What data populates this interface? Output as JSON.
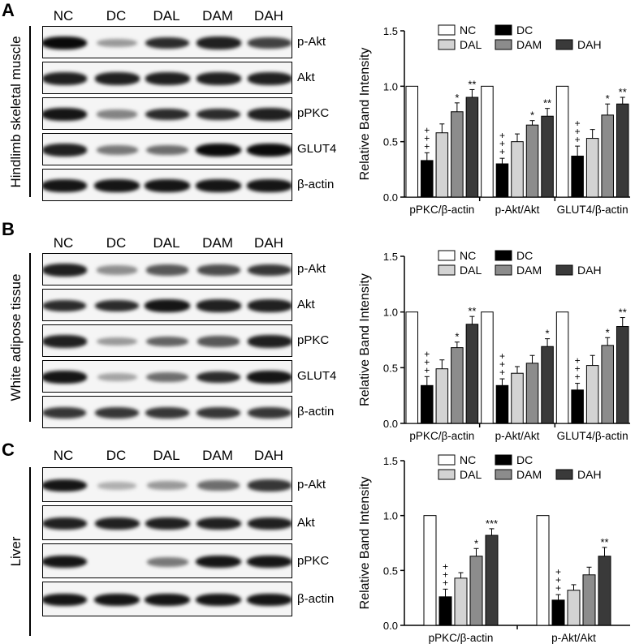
{
  "lanes": [
    "NC",
    "DC",
    "DAL",
    "DAM",
    "DAH"
  ],
  "legend_colors": [
    "#ffffff",
    "#000000",
    "#d3d3d3",
    "#8c8c8c",
    "#3a3a3a"
  ],
  "panels": [
    {
      "letter": "A",
      "tissue": "Hindlimb skeletal muscle",
      "blots": [
        {
          "label": "p-Akt",
          "intensity": [
            1.0,
            0.35,
            0.85,
            0.9,
            0.75
          ]
        },
        {
          "label": "Akt",
          "intensity": [
            0.9,
            0.9,
            0.9,
            0.9,
            0.9
          ]
        },
        {
          "label": "pPKC",
          "intensity": [
            0.95,
            0.45,
            0.85,
            0.85,
            0.9
          ]
        },
        {
          "label": "GLUT4",
          "intensity": [
            0.9,
            0.5,
            0.55,
            1.0,
            1.0
          ]
        },
        {
          "label": "β-actin",
          "intensity": [
            0.95,
            0.95,
            0.95,
            0.95,
            0.95
          ]
        }
      ]
    },
    {
      "letter": "B",
      "tissue": "White adipose tissue",
      "blots": [
        {
          "label": "p-Akt",
          "intensity": [
            0.9,
            0.4,
            0.65,
            0.7,
            0.8
          ]
        },
        {
          "label": "Akt",
          "intensity": [
            0.85,
            0.85,
            0.95,
            0.9,
            0.9
          ]
        },
        {
          "label": "pPKC",
          "intensity": [
            0.9,
            0.35,
            0.6,
            0.65,
            0.9
          ]
        },
        {
          "label": "GLUT4",
          "intensity": [
            0.95,
            0.3,
            0.55,
            0.85,
            0.95
          ]
        },
        {
          "label": "β-actin",
          "intensity": [
            0.8,
            0.8,
            0.8,
            0.8,
            0.8
          ]
        }
      ]
    },
    {
      "letter": "C",
      "tissue": "Liver",
      "blots": [
        {
          "label": "p-Akt",
          "intensity": [
            0.95,
            0.25,
            0.35,
            0.55,
            0.8
          ]
        },
        {
          "label": "Akt",
          "intensity": [
            0.9,
            0.9,
            0.9,
            0.9,
            0.9
          ]
        },
        {
          "label": "pPKC",
          "intensity": [
            0.95,
            0.0,
            0.5,
            0.95,
            0.95
          ]
        },
        {
          "label": "β-actin",
          "intensity": [
            0.95,
            0.95,
            0.95,
            0.95,
            0.95
          ]
        }
      ]
    }
  ],
  "chart_data": [
    {
      "type": "bar",
      "ylabel": "Relative Band Intensity",
      "ylim": [
        0,
        1.5
      ],
      "yticks": [
        "0.0",
        "0.5",
        "1.0",
        "1.5"
      ],
      "categories": [
        "pPKC/β-actin",
        "p-Akt/Akt",
        "GLUT4/β-actin"
      ],
      "legend": "top",
      "series": [
        {
          "name": "NC",
          "values": [
            1.0,
            1.0,
            1.0
          ],
          "errors": [
            0,
            0,
            0
          ],
          "marks": [
            "",
            "",
            ""
          ]
        },
        {
          "name": "DC",
          "values": [
            0.33,
            0.3,
            0.37
          ],
          "errors": [
            0.07,
            0.05,
            0.09
          ],
          "marks": [
            "+++",
            "+++",
            "+++"
          ]
        },
        {
          "name": "DAL",
          "values": [
            0.58,
            0.5,
            0.53
          ],
          "errors": [
            0.08,
            0.07,
            0.08
          ],
          "marks": [
            "",
            "",
            ""
          ]
        },
        {
          "name": "DAM",
          "values": [
            0.77,
            0.65,
            0.74
          ],
          "errors": [
            0.08,
            0.04,
            0.1
          ],
          "marks": [
            "*",
            "*",
            "*"
          ]
        },
        {
          "name": "DAH",
          "values": [
            0.9,
            0.73,
            0.84
          ],
          "errors": [
            0.07,
            0.07,
            0.06
          ],
          "marks": [
            "**",
            "**",
            "**"
          ]
        }
      ]
    },
    {
      "type": "bar",
      "ylabel": "Relative Band Intensity",
      "ylim": [
        0,
        1.5
      ],
      "yticks": [
        "0.0",
        "0.5",
        "1.0",
        "1.5"
      ],
      "categories": [
        "pPKC/β-actin",
        "p-Akt/Akt",
        "GLUT4/β-actin"
      ],
      "legend": "top",
      "series": [
        {
          "name": "NC",
          "values": [
            1.0,
            1.0,
            1.0
          ],
          "errors": [
            0,
            0,
            0
          ],
          "marks": [
            "",
            "",
            ""
          ]
        },
        {
          "name": "DC",
          "values": [
            0.34,
            0.34,
            0.3
          ],
          "errors": [
            0.08,
            0.06,
            0.06
          ],
          "marks": [
            "+++",
            "+++",
            "+++"
          ]
        },
        {
          "name": "DAL",
          "values": [
            0.49,
            0.45,
            0.52
          ],
          "errors": [
            0.08,
            0.06,
            0.09
          ],
          "marks": [
            "",
            "",
            ""
          ]
        },
        {
          "name": "DAM",
          "values": [
            0.68,
            0.54,
            0.7
          ],
          "errors": [
            0.05,
            0.07,
            0.07
          ],
          "marks": [
            "*",
            "",
            "*"
          ]
        },
        {
          "name": "DAH",
          "values": [
            0.89,
            0.69,
            0.87
          ],
          "errors": [
            0.07,
            0.07,
            0.08
          ],
          "marks": [
            "**",
            "*",
            "**"
          ]
        }
      ]
    },
    {
      "type": "bar",
      "ylabel": "Relative Band Intensity",
      "ylim": [
        0,
        1.5
      ],
      "yticks": [
        "0.0",
        "0.5",
        "1.0",
        "1.5"
      ],
      "categories": [
        "pPKC/β-actin",
        "p-Akt/Akt"
      ],
      "legend": "top",
      "series": [
        {
          "name": "NC",
          "values": [
            1.0,
            1.0
          ],
          "errors": [
            0,
            0
          ],
          "marks": [
            "",
            ""
          ]
        },
        {
          "name": "DC",
          "values": [
            0.26,
            0.23
          ],
          "errors": [
            0.07,
            0.05
          ],
          "marks": [
            "+++",
            "+++"
          ]
        },
        {
          "name": "DAL",
          "values": [
            0.43,
            0.32
          ],
          "errors": [
            0.05,
            0.05
          ],
          "marks": [
            "",
            ""
          ]
        },
        {
          "name": "DAM",
          "values": [
            0.63,
            0.46
          ],
          "errors": [
            0.07,
            0.07
          ],
          "marks": [
            "*",
            ""
          ]
        },
        {
          "name": "DAH",
          "values": [
            0.82,
            0.63
          ],
          "errors": [
            0.06,
            0.08
          ],
          "marks": [
            "***",
            "**"
          ]
        }
      ]
    }
  ]
}
